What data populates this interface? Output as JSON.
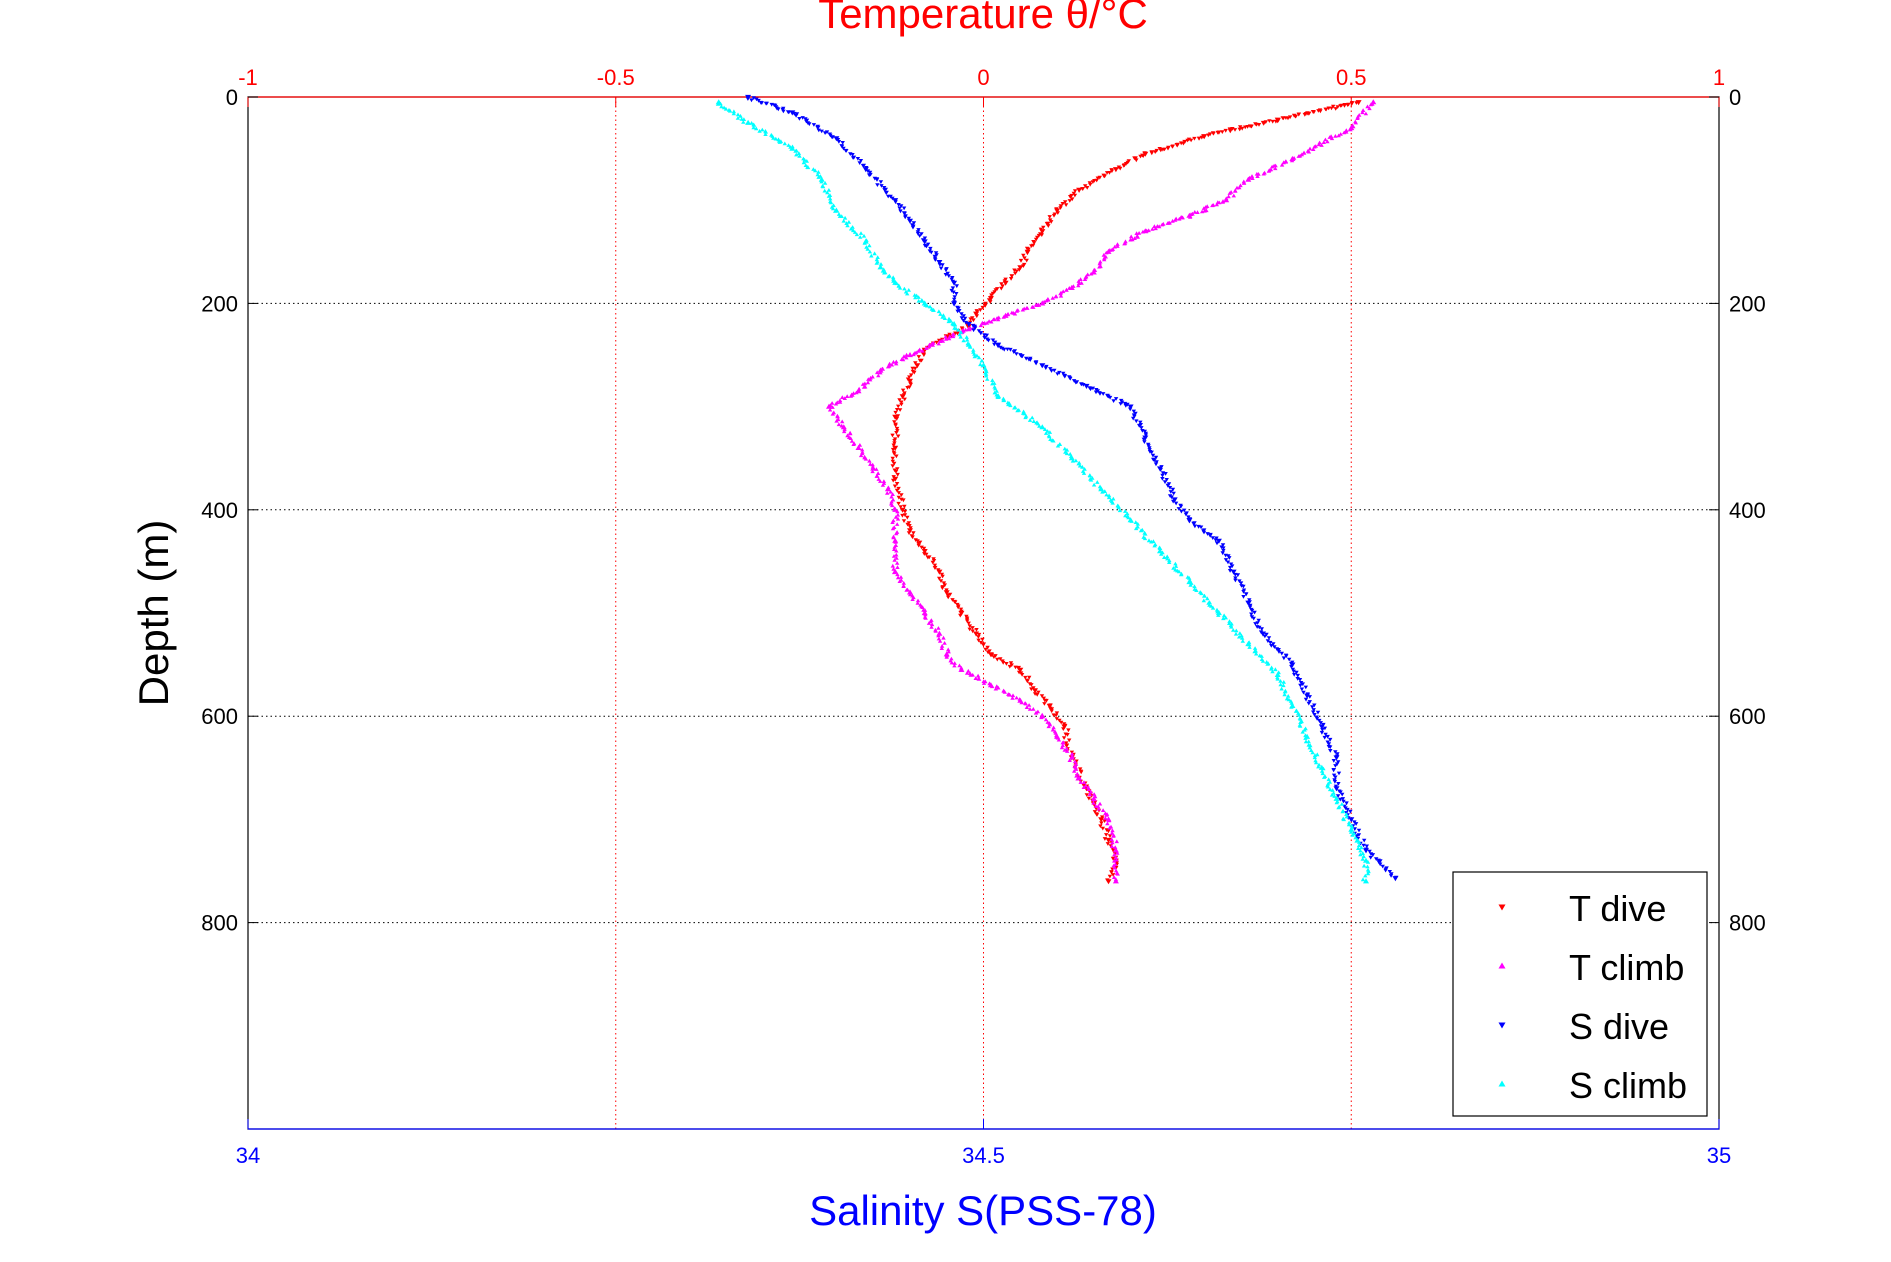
{
  "chart_data": {
    "type": "scatter",
    "top_axis": {
      "label": "Temperature θ/°C",
      "ticks": [
        -1,
        -0.5,
        0,
        0.5,
        1
      ],
      "tick_labels": [
        "-1",
        "-0.5",
        "0",
        "0.5",
        "1"
      ],
      "range": [
        -1,
        1
      ],
      "color": "#ff0000",
      "grid": true
    },
    "bottom_axis": {
      "label": "Salinity S(PSS-78)",
      "ticks": [
        34,
        34.5,
        35
      ],
      "tick_labels": [
        "34",
        "34.5",
        "35"
      ],
      "range": [
        34,
        35
      ],
      "color": "#0000ff"
    },
    "y_axis": {
      "label": "Depth (m)",
      "ticks": [
        0,
        200,
        400,
        600,
        800
      ],
      "tick_labels": [
        "0",
        "200",
        "400",
        "600",
        "800"
      ],
      "range": [
        0,
        1000
      ],
      "reversed": true,
      "grid": true
    },
    "legend": {
      "placement": "bottom-right",
      "entries": [
        "T dive",
        "T climb",
        "S dive",
        "S climb"
      ]
    },
    "series": [
      {
        "name": "T dive",
        "axis": "temperature",
        "color": "#ff0000",
        "marker": "triangle-down",
        "points": [
          [
            0.51,
            5
          ],
          [
            0.4,
            22
          ],
          [
            0.3,
            38
          ],
          [
            0.22,
            55
          ],
          [
            0.18,
            70
          ],
          [
            0.13,
            90
          ],
          [
            0.1,
            110
          ],
          [
            0.08,
            130
          ],
          [
            0.06,
            150
          ],
          [
            0.05,
            165
          ],
          [
            0.03,
            180
          ],
          [
            0.01,
            195
          ],
          [
            -0.01,
            210
          ],
          [
            -0.02,
            222
          ],
          [
            -0.05,
            232
          ],
          [
            -0.08,
            245
          ],
          [
            -0.09,
            260
          ],
          [
            -0.1,
            275
          ],
          [
            -0.11,
            290
          ],
          [
            -0.12,
            310
          ],
          [
            -0.12,
            340
          ],
          [
            -0.12,
            370
          ],
          [
            -0.11,
            400
          ],
          [
            -0.1,
            420
          ],
          [
            -0.08,
            440
          ],
          [
            -0.06,
            460
          ],
          [
            -0.05,
            480
          ],
          [
            -0.03,
            500
          ],
          [
            -0.01,
            520
          ],
          [
            0.01,
            540
          ],
          [
            0.05,
            555
          ],
          [
            0.07,
            575
          ],
          [
            0.09,
            590
          ],
          [
            0.11,
            610
          ],
          [
            0.12,
            640
          ],
          [
            0.14,
            670
          ],
          [
            0.16,
            700
          ],
          [
            0.17,
            720
          ],
          [
            0.18,
            740
          ],
          [
            0.17,
            760
          ]
        ]
      },
      {
        "name": "T climb",
        "axis": "temperature",
        "color": "#ff00ff",
        "marker": "triangle-up",
        "points": [
          [
            0.53,
            5
          ],
          [
            0.5,
            30
          ],
          [
            0.42,
            60
          ],
          [
            0.36,
            80
          ],
          [
            0.33,
            100
          ],
          [
            0.28,
            115
          ],
          [
            0.22,
            130
          ],
          [
            0.17,
            150
          ],
          [
            0.15,
            170
          ],
          [
            0.12,
            185
          ],
          [
            0.08,
            200
          ],
          [
            0.03,
            212
          ],
          [
            -0.02,
            225
          ],
          [
            -0.07,
            240
          ],
          [
            -0.1,
            250
          ],
          [
            -0.14,
            265
          ],
          [
            -0.17,
            285
          ],
          [
            -0.21,
            300
          ],
          [
            -0.19,
            320
          ],
          [
            -0.17,
            340
          ],
          [
            -0.15,
            360
          ],
          [
            -0.13,
            380
          ],
          [
            -0.12,
            400
          ],
          [
            -0.12,
            430
          ],
          [
            -0.12,
            460
          ],
          [
            -0.1,
            480
          ],
          [
            -0.08,
            500
          ],
          [
            -0.06,
            520
          ],
          [
            -0.05,
            540
          ],
          [
            -0.03,
            555
          ],
          [
            0.01,
            570
          ],
          [
            0.05,
            585
          ],
          [
            0.08,
            600
          ],
          [
            0.1,
            620
          ],
          [
            0.12,
            640
          ],
          [
            0.13,
            660
          ],
          [
            0.15,
            680
          ],
          [
            0.17,
            700
          ],
          [
            0.18,
            730
          ],
          [
            0.18,
            760
          ]
        ]
      },
      {
        "name": "S dive",
        "axis": "salinity",
        "color": "#0000ff",
        "marker": "triangle-down",
        "points": [
          [
            34.34,
            0
          ],
          [
            34.37,
            15
          ],
          [
            34.4,
            40
          ],
          [
            34.42,
            70
          ],
          [
            34.44,
            100
          ],
          [
            34.45,
            120
          ],
          [
            34.46,
            140
          ],
          [
            34.47,
            160
          ],
          [
            34.48,
            180
          ],
          [
            34.48,
            200
          ],
          [
            34.49,
            220
          ],
          [
            34.51,
            240
          ],
          [
            34.54,
            260
          ],
          [
            34.57,
            280
          ],
          [
            34.6,
            300
          ],
          [
            34.61,
            330
          ],
          [
            34.62,
            360
          ],
          [
            34.63,
            390
          ],
          [
            34.64,
            410
          ],
          [
            34.66,
            430
          ],
          [
            34.67,
            460
          ],
          [
            34.68,
            490
          ],
          [
            34.69,
            520
          ],
          [
            34.71,
            550
          ],
          [
            34.72,
            580
          ],
          [
            34.73,
            610
          ],
          [
            34.74,
            640
          ],
          [
            34.74,
            670
          ],
          [
            34.75,
            700
          ],
          [
            34.76,
            730
          ],
          [
            34.78,
            757
          ]
        ]
      },
      {
        "name": "S climb",
        "axis": "salinity",
        "color": "#00ffff",
        "marker": "triangle-up",
        "points": [
          [
            34.32,
            5
          ],
          [
            34.34,
            25
          ],
          [
            34.37,
            50
          ],
          [
            34.39,
            80
          ],
          [
            34.4,
            110
          ],
          [
            34.42,
            140
          ],
          [
            34.43,
            165
          ],
          [
            34.44,
            180
          ],
          [
            34.46,
            200
          ],
          [
            34.48,
            220
          ],
          [
            34.49,
            240
          ],
          [
            34.5,
            260
          ],
          [
            34.51,
            290
          ],
          [
            34.54,
            320
          ],
          [
            34.56,
            350
          ],
          [
            34.58,
            380
          ],
          [
            34.6,
            410
          ],
          [
            34.62,
            440
          ],
          [
            34.64,
            470
          ],
          [
            34.66,
            500
          ],
          [
            34.68,
            530
          ],
          [
            34.7,
            560
          ],
          [
            34.71,
            590
          ],
          [
            34.72,
            620
          ],
          [
            34.73,
            650
          ],
          [
            34.74,
            680
          ],
          [
            34.75,
            710
          ],
          [
            34.76,
            740
          ],
          [
            34.76,
            760
          ]
        ]
      }
    ]
  }
}
